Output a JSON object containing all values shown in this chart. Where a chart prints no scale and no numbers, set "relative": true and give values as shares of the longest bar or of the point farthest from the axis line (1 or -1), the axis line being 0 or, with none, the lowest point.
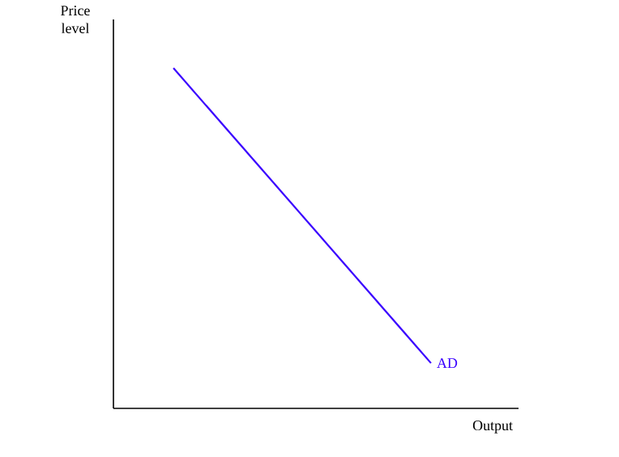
{
  "chart_data": {
    "type": "line",
    "xlabel": "Output",
    "ylabel": "Price level",
    "relative": true,
    "categories": [
      null,
      null
    ],
    "series": [
      {
        "name": "AD",
        "color": "#3a00ff",
        "values": [
          1,
          0.133
        ]
      }
    ]
  }
}
